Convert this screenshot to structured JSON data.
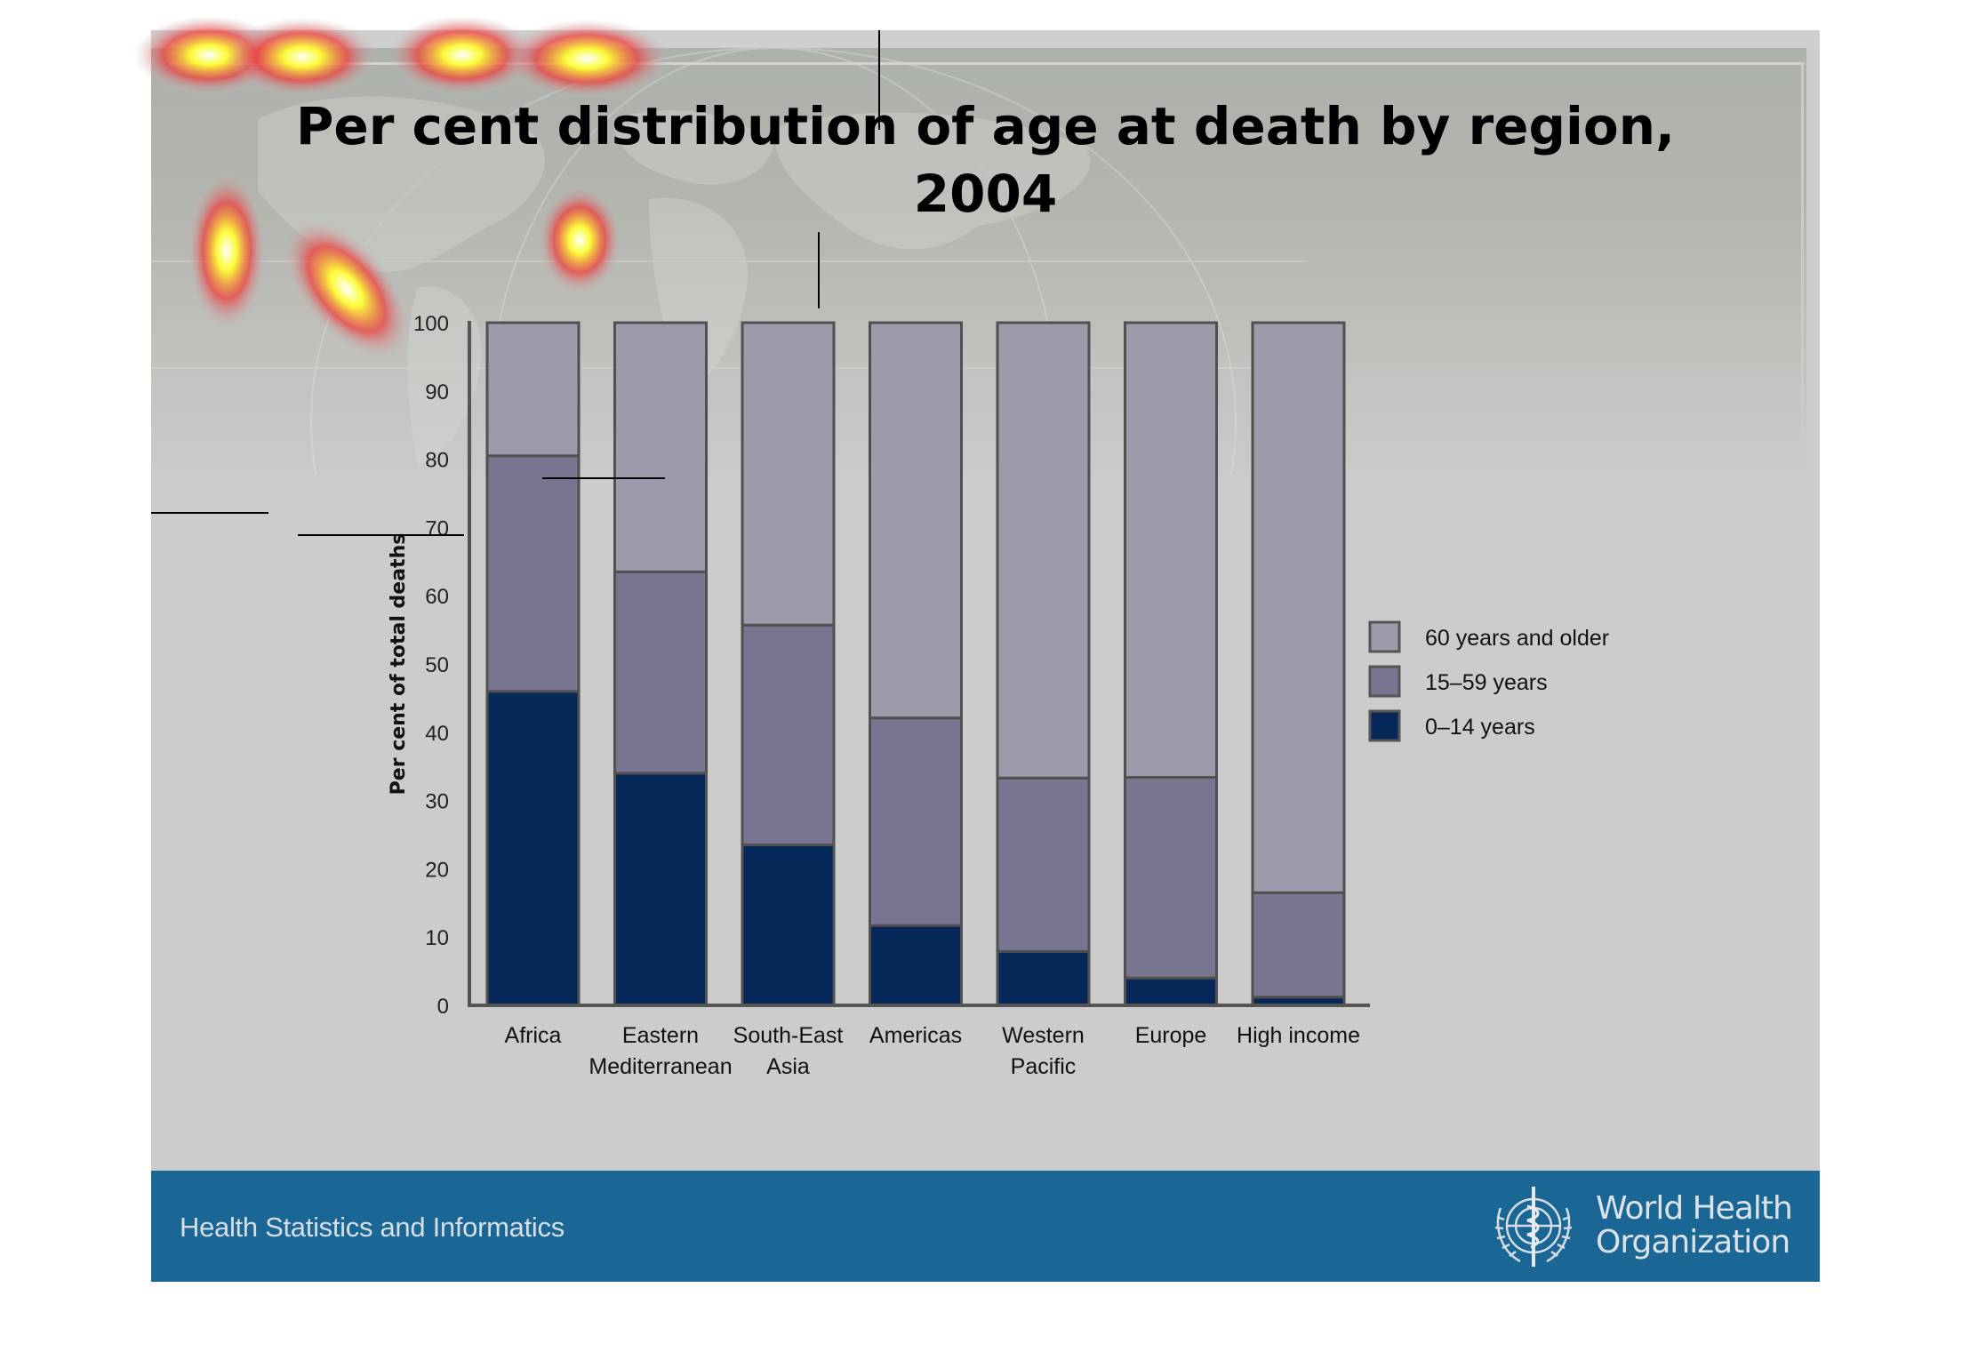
{
  "slide": {
    "title_line1": "Per cent distribution of age at death by region,",
    "title_line2": "2004",
    "footer_text": "Health Statistics and Informatics",
    "org_name_line1": "World Health",
    "org_name_line2": "Organization",
    "colors": {
      "footer": "#1a6795",
      "age_60_plus": "#9c9aab",
      "age_15_59": "#787591",
      "age_0_14": "#062858"
    }
  },
  "chart_data": {
    "type": "bar",
    "stacked": true,
    "title": "Per cent distribution of age at death by region, 2004",
    "xlabel": "",
    "ylabel": "Per cent of total deaths",
    "ylim": [
      0,
      100
    ],
    "yticks": [
      0,
      10,
      20,
      30,
      40,
      50,
      60,
      70,
      80,
      90,
      100
    ],
    "grid": false,
    "legend_position": "right",
    "categories": [
      [
        "Africa"
      ],
      [
        "Eastern",
        "Mediterranean"
      ],
      [
        "South-East",
        "Asia"
      ],
      [
        "Americas"
      ],
      [
        "Western",
        "Pacific"
      ],
      [
        "Europe"
      ],
      [
        "High income"
      ]
    ],
    "series": [
      {
        "name": "0–14 years",
        "color": "#062858",
        "values": [
          46,
          34,
          23.5,
          11.7,
          7.9,
          4.0,
          1.2
        ]
      },
      {
        "name": "15–59 years",
        "color": "#787591",
        "values": [
          34.5,
          29.5,
          32.2,
          30.4,
          25.4,
          29.4,
          15.3
        ]
      },
      {
        "name": "60 years and older",
        "color": "#9c9aab",
        "values": [
          19.5,
          36.5,
          44.3,
          57.9,
          66.7,
          66.6,
          83.5
        ]
      }
    ],
    "legend": [
      "60 years and older",
      "15–59 years",
      "0–14 years"
    ]
  }
}
